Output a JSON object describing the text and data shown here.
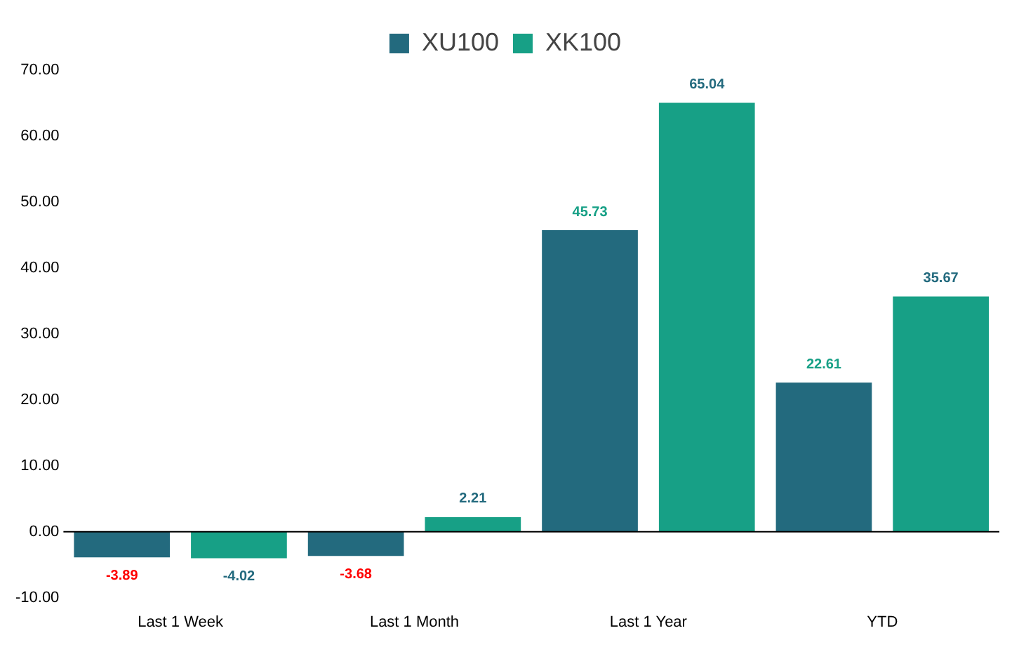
{
  "chart_data": {
    "type": "bar",
    "categories": [
      "Last 1 Week",
      "Last 1 Month",
      "Last 1 Year",
      "YTD"
    ],
    "series": [
      {
        "name": "XU100",
        "color": "#236a7e",
        "values": [
          -3.89,
          -3.68,
          45.73,
          22.61
        ]
      },
      {
        "name": "XK100",
        "color": "#17a086",
        "values": [
          -4.02,
          2.21,
          65.04,
          35.67
        ]
      }
    ],
    "ylim": [
      -10,
      70
    ],
    "yticks": [
      {
        "value": -10,
        "label": "-10.00"
      },
      {
        "value": 0,
        "label": "0.00"
      },
      {
        "value": 10,
        "label": "10.00"
      },
      {
        "value": 20,
        "label": "20.00"
      },
      {
        "value": 30,
        "label": "30.00"
      },
      {
        "value": 40,
        "label": "40.00"
      },
      {
        "value": 50,
        "label": "50.00"
      },
      {
        "value": 60,
        "label": "60.00"
      },
      {
        "value": 70,
        "label": "70.00"
      }
    ],
    "ref_lines": [
      {
        "axis": "y",
        "value": 0,
        "color": "#000000"
      }
    ],
    "data_labels": true,
    "legend": "top",
    "grid": false
  }
}
